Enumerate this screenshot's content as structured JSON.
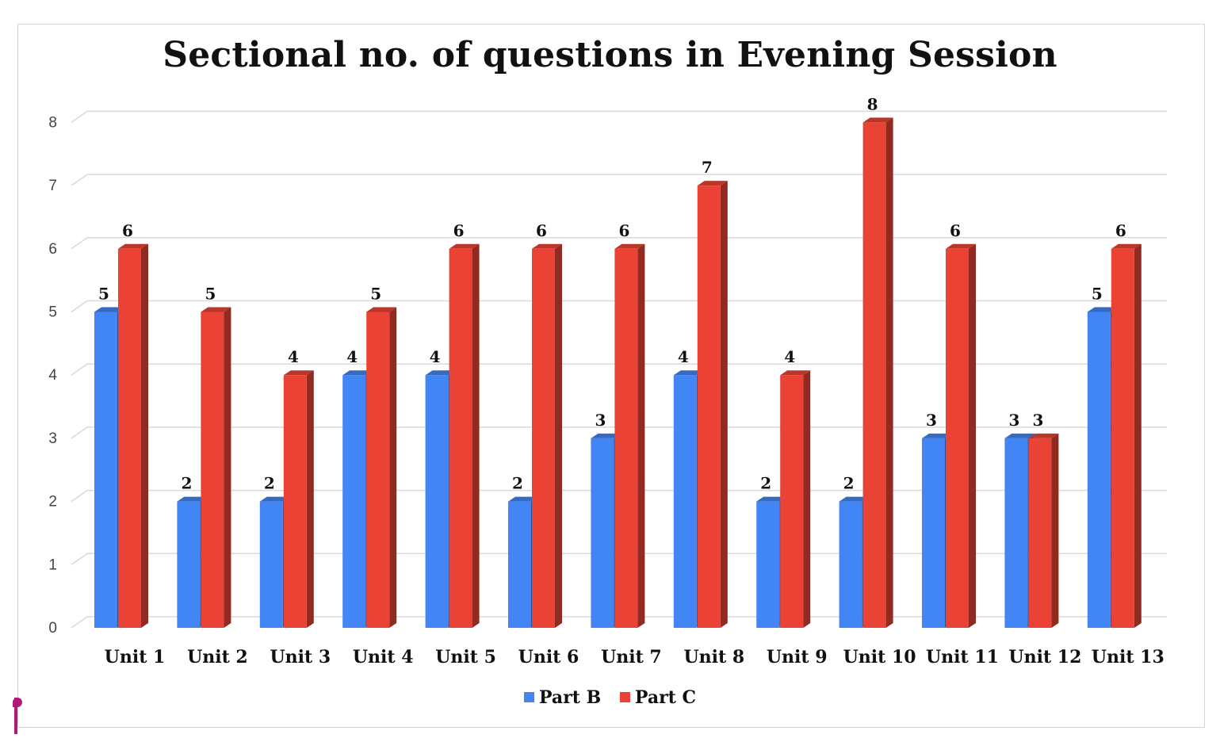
{
  "chart_data": {
    "type": "bar",
    "title": "Sectional no. of questions in Evening Session",
    "categories": [
      "Unit 1",
      "Unit 2",
      "Unit 3",
      "Unit 4",
      "Unit 5",
      "Unit 6",
      "Unit 7",
      "Unit 8",
      "Unit 9",
      "Unit 10",
      "Unit 11",
      "Unit 12",
      "Unit 13"
    ],
    "series": [
      {
        "name": "Part B",
        "color": "#4285f4",
        "values": [
          5,
          2,
          2,
          4,
          4,
          2,
          3,
          4,
          2,
          2,
          3,
          3,
          5
        ]
      },
      {
        "name": "Part C",
        "color": "#ea4335",
        "values": [
          6,
          5,
          4,
          5,
          6,
          6,
          6,
          7,
          4,
          8,
          6,
          3,
          6
        ]
      }
    ],
    "ylim": [
      0,
      8
    ],
    "yticks": [
      "0",
      "1",
      "2",
      "3",
      "4",
      "5",
      "6",
      "7",
      "8"
    ],
    "grid": true,
    "legend_position": "bottom",
    "style": "3d-clustered-column",
    "data_labels": true
  }
}
